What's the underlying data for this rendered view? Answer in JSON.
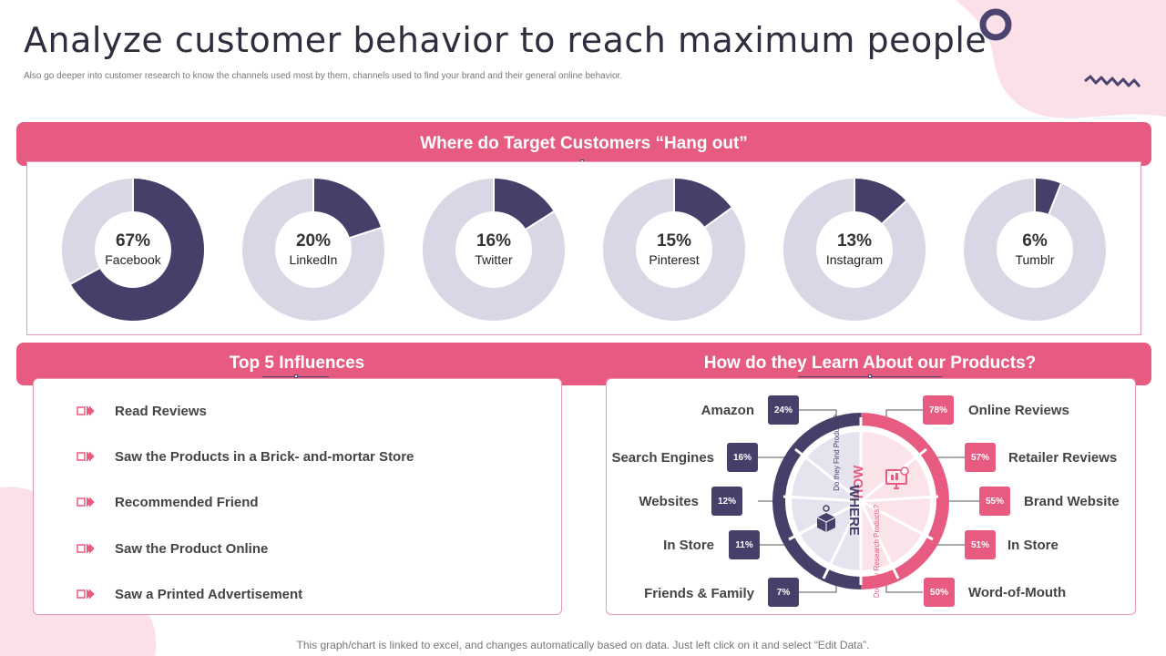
{
  "header": {
    "title": "Analyze customer behavior to reach maximum people",
    "subtitle": "Also go deeper into customer research to know the channels used most by them,  channels used to find your brand and their general online behavior."
  },
  "hangout": {
    "title": "Where do Target Customers “Hang out”"
  },
  "chart_data": {
    "type": "pie",
    "title": "Where do Target Customers “Hang out”",
    "categories": [
      "Facebook",
      "LinkedIn",
      "Twitter",
      "Pinterest",
      "Instagram",
      "Tumblr"
    ],
    "values": [
      67,
      20,
      16,
      15,
      13,
      6
    ],
    "labels": [
      "67%",
      "20%",
      "16%",
      "15%",
      "13%",
      "6%"
    ],
    "unit": "%"
  },
  "influences": {
    "title": "Top 5 Influences",
    "items": [
      "Read Reviews",
      "Saw the Products in a Brick- and-mortar Store",
      "Recommended Friend",
      "Saw the Product Online",
      "Saw a Printed Advertisement"
    ]
  },
  "learn": {
    "title": "How do they Learn About our Products?",
    "how_label": "HOW",
    "where_label": "WHERE",
    "find_label": "Do they Find Products?",
    "research_label": "Do they Research Products?",
    "left": [
      {
        "label": "Amazon",
        "value": "24%"
      },
      {
        "label": "Search Engines",
        "value": "16%"
      },
      {
        "label": "Websites",
        "value": "12%"
      },
      {
        "label": "In Store",
        "value": "11%"
      },
      {
        "label": "Friends & Family",
        "value": "7%"
      }
    ],
    "right": [
      {
        "label": "Online Reviews",
        "value": "78%"
      },
      {
        "label": "Retailer Reviews",
        "value": "57%"
      },
      {
        "label": "Brand Website",
        "value": "55%"
      },
      {
        "label": "In Store",
        "value": "51%"
      },
      {
        "label": "Word-of-Mouth",
        "value": "50%"
      }
    ]
  },
  "colors": {
    "accent": "#e85b81",
    "dark": "#463f69",
    "light": "#d9d6e6"
  },
  "footer": {
    "note": "This graph/chart is linked to excel,  and changes automatically based on data. Just left click on it and select “Edit Data”."
  }
}
